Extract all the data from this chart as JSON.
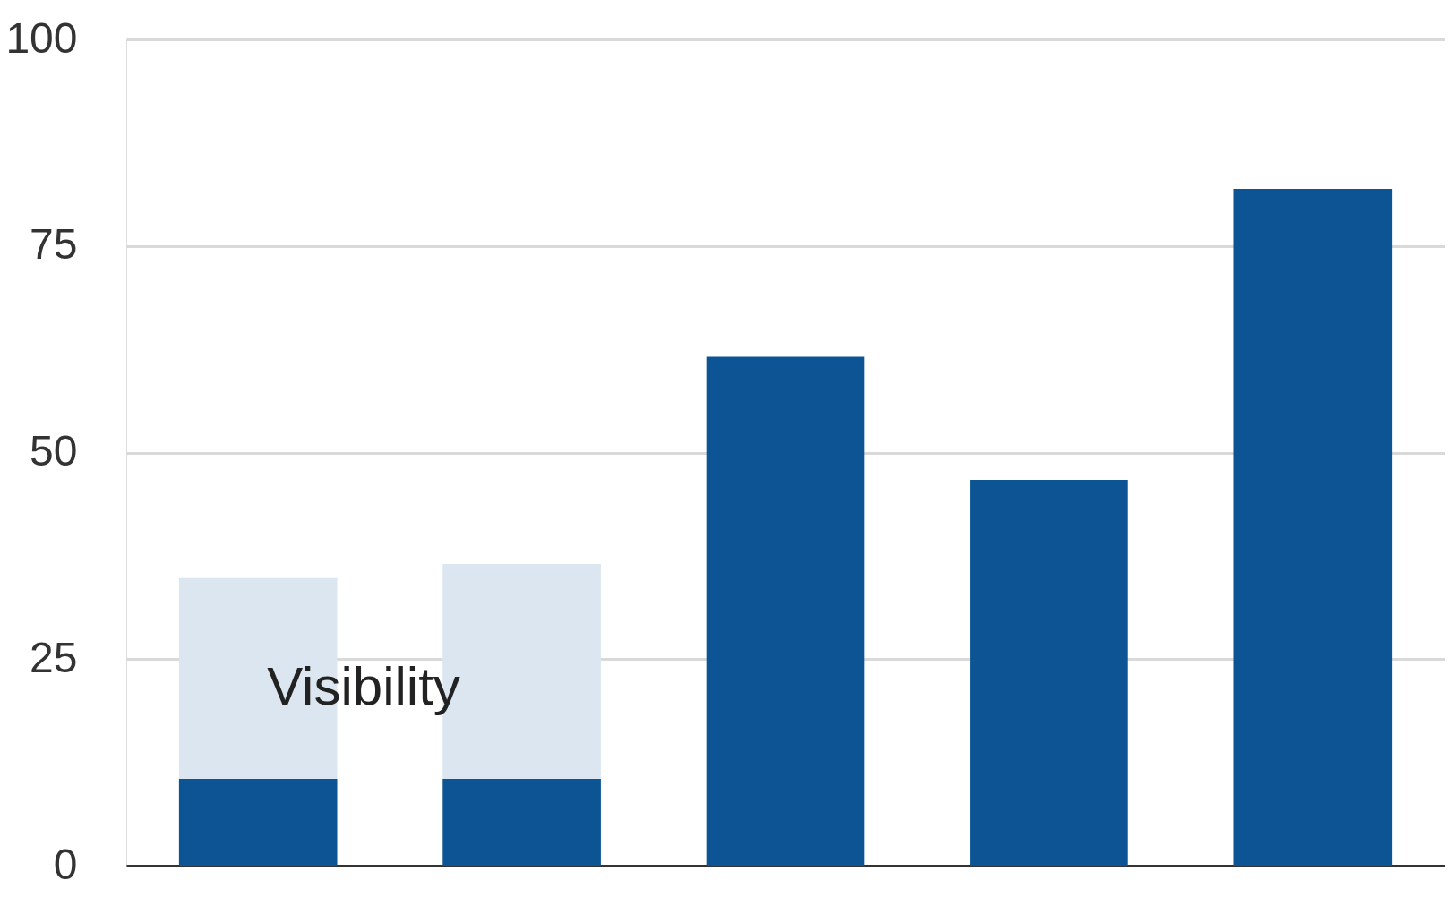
{
  "chart_data": {
    "type": "bar",
    "stacked": true,
    "categories": [
      null,
      null,
      null,
      null,
      null
    ],
    "series": [
      {
        "color": "#0d5494",
        "values": [
          10.5,
          10.5,
          61.6,
          46.7,
          81.9
        ]
      },
      {
        "color": "#dce6f0",
        "values": [
          24.3,
          26,
          null,
          null,
          null
        ]
      }
    ],
    "ylim": [
      0,
      100
    ],
    "yticks": [
      0,
      25,
      50,
      75,
      100
    ],
    "grid": "y",
    "tick_labels": "y",
    "annotations": [
      "Visibility"
    ]
  }
}
